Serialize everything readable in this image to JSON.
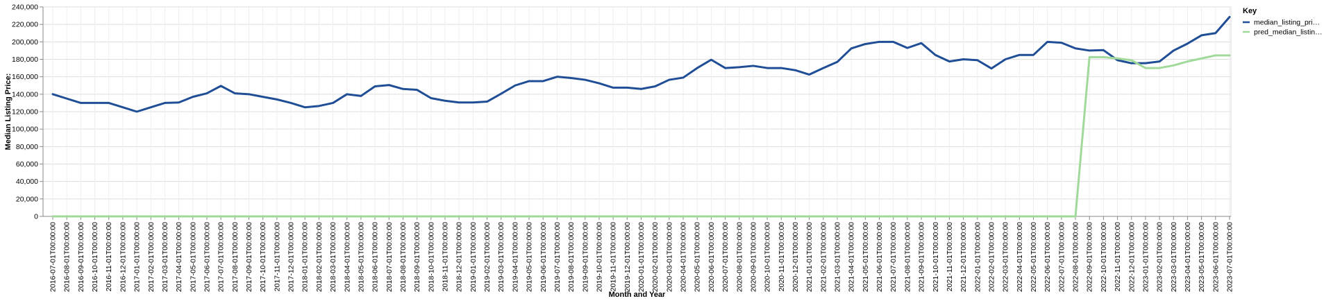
{
  "chart_data": {
    "type": "line",
    "title": "",
    "xlabel": "Month and Year",
    "ylabel": "Median Listing Price:",
    "ylim": [
      0,
      240000
    ],
    "y_ticks": [
      "0",
      "20,000",
      "40,000",
      "60,000",
      "80,000",
      "100,000",
      "120,000",
      "140,000",
      "160,000",
      "180,000",
      "200,000",
      "220,000",
      "240,000"
    ],
    "y_tick_values": [
      0,
      20000,
      40000,
      60000,
      80000,
      100000,
      120000,
      140000,
      160000,
      180000,
      200000,
      220000,
      240000
    ],
    "grid": true,
    "legend_title": "Key",
    "legend_position": "top-right",
    "categories": [
      "2016-07-01T00:00:00",
      "2016-08-01T00:00:00",
      "2016-09-01T00:00:00",
      "2016-10-01T00:00:00",
      "2016-11-01T00:00:00",
      "2016-12-01T00:00:00",
      "2017-01-01T00:00:00",
      "2017-02-01T00:00:00",
      "2017-03-01T00:00:00",
      "2017-04-01T00:00:00",
      "2017-05-01T00:00:00",
      "2017-06-01T00:00:00",
      "2017-07-01T00:00:00",
      "2017-08-01T00:00:00",
      "2017-09-01T00:00:00",
      "2017-10-01T00:00:00",
      "2017-11-01T00:00:00",
      "2017-12-01T00:00:00",
      "2018-01-01T00:00:00",
      "2018-02-01T00:00:00",
      "2018-03-01T00:00:00",
      "2018-04-01T00:00:00",
      "2018-05-01T00:00:00",
      "2018-06-01T00:00:00",
      "2018-07-01T00:00:00",
      "2018-08-01T00:00:00",
      "2018-09-01T00:00:00",
      "2018-10-01T00:00:00",
      "2018-11-01T00:00:00",
      "2018-12-01T00:00:00",
      "2019-01-01T00:00:00",
      "2019-02-01T00:00:00",
      "2019-03-01T00:00:00",
      "2019-04-01T00:00:00",
      "2019-05-01T00:00:00",
      "2019-06-01T00:00:00",
      "2019-07-01T00:00:00",
      "2019-08-01T00:00:00",
      "2019-09-01T00:00:00",
      "2019-10-01T00:00:00",
      "2019-11-01T00:00:00",
      "2019-12-01T00:00:00",
      "2020-01-01T00:00:00",
      "2020-02-01T00:00:00",
      "2020-03-01T00:00:00",
      "2020-04-01T00:00:00",
      "2020-05-01T00:00:00",
      "2020-06-01T00:00:00",
      "2020-07-01T00:00:00",
      "2020-08-01T00:00:00",
      "2020-09-01T00:00:00",
      "2020-10-01T00:00:00",
      "2020-11-01T00:00:00",
      "2020-12-01T00:00:00",
      "2021-01-01T00:00:00",
      "2021-02-01T00:00:00",
      "2021-03-01T00:00:00",
      "2021-04-01T00:00:00",
      "2021-05-01T00:00:00",
      "2021-06-01T00:00:00",
      "2021-07-01T00:00:00",
      "2021-08-01T00:00:00",
      "2021-09-01T00:00:00",
      "2021-10-01T00:00:00",
      "2021-11-01T00:00:00",
      "2021-12-01T00:00:00",
      "2022-01-01T00:00:00",
      "2022-02-01T00:00:00",
      "2022-03-01T00:00:00",
      "2022-04-01T00:00:00",
      "2022-05-01T00:00:00",
      "2022-06-01T00:00:00",
      "2022-07-01T00:00:00",
      "2022-08-01T00:00:00",
      "2022-09-01T00:00:00",
      "2022-10-01T00:00:00",
      "2022-11-01T00:00:00",
      "2022-12-01T00:00:00",
      "2023-01-01T00:00:00",
      "2023-02-01T00:00:00",
      "2023-03-01T00:00:00",
      "2023-04-01T00:00:00",
      "2023-05-01T00:00:00",
      "2023-06-01T00:00:00",
      "2023-07-01T00:00:00"
    ],
    "series": [
      {
        "name": "median_listing_pri…",
        "color": "#1f4e96",
        "values": [
          140000,
          135000,
          130000,
          130000,
          130000,
          125000,
          120000,
          125000,
          130000,
          130500,
          137000,
          141000,
          149500,
          141000,
          140000,
          137000,
          134000,
          130000,
          125000,
          126500,
          130000,
          140000,
          138000,
          149000,
          150500,
          146000,
          145000,
          135500,
          132500,
          130500,
          130500,
          131500,
          140500,
          150000,
          155000,
          155000,
          160000,
          158500,
          156500,
          152500,
          147500,
          147500,
          146000,
          149000,
          156500,
          159000,
          170000,
          179500,
          170000,
          171000,
          172500,
          170000,
          170000,
          167500,
          162500,
          170000,
          177000,
          192500,
          197500,
          200000,
          200000,
          193000,
          198500,
          185000,
          177500,
          180000,
          179000,
          169500,
          180000,
          185000,
          185000,
          200000,
          199000,
          192500,
          190000,
          190500,
          179000,
          175500,
          175500,
          177500,
          190000,
          198000,
          207500,
          210000,
          228500
        ]
      },
      {
        "name": "pred_median_listin…",
        "color": "#a1d99b",
        "values": [
          0,
          0,
          0,
          0,
          0,
          0,
          0,
          0,
          0,
          0,
          0,
          0,
          0,
          0,
          0,
          0,
          0,
          0,
          0,
          0,
          0,
          0,
          0,
          0,
          0,
          0,
          0,
          0,
          0,
          0,
          0,
          0,
          0,
          0,
          0,
          0,
          0,
          0,
          0,
          0,
          0,
          0,
          0,
          0,
          0,
          0,
          0,
          0,
          0,
          0,
          0,
          0,
          0,
          0,
          0,
          0,
          0,
          0,
          0,
          0,
          0,
          0,
          0,
          0,
          0,
          0,
          0,
          0,
          0,
          0,
          0,
          0,
          0,
          0,
          182500,
          182500,
          181000,
          179000,
          170000,
          170000,
          173000,
          177500,
          181000,
          184500,
          184500
        ]
      }
    ]
  }
}
